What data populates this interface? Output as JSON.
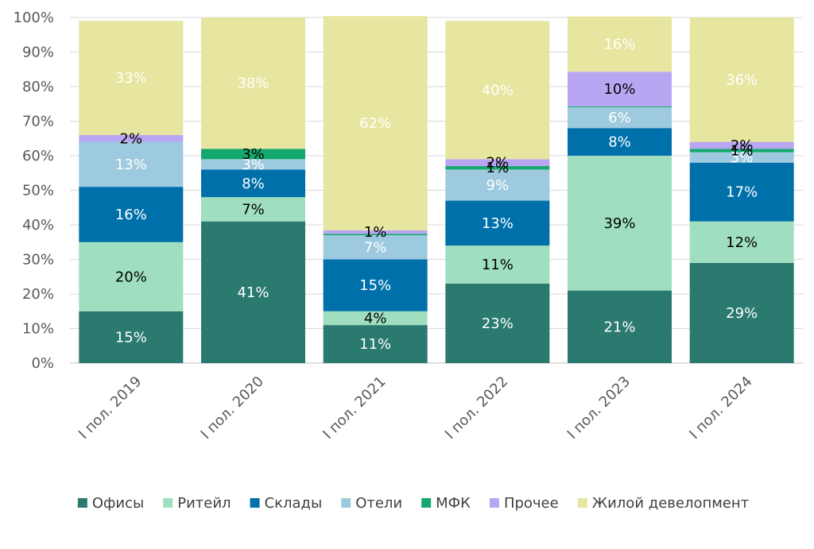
{
  "chart_data": {
    "type": "bar",
    "stacked": true,
    "title": "",
    "xlabel": "",
    "ylabel": "",
    "ylim": [
      0,
      100
    ],
    "yticks": [
      "0%",
      "10%",
      "20%",
      "30%",
      "40%",
      "50%",
      "60%",
      "70%",
      "80%",
      "90%",
      "100%"
    ],
    "grid": true,
    "legend_position": "bottom",
    "categories": [
      "I пол. 2019",
      "I пол. 2020",
      "I пол. 2021",
      "I пол. 2022",
      "I пол. 2023",
      "I пол. 2024"
    ],
    "series": [
      {
        "name": "Офисы",
        "color": "#2b7a6f",
        "label_color": "#ffffff",
        "values": [
          15,
          41,
          11,
          23,
          21,
          29
        ],
        "labels": [
          "15%",
          "41%",
          "11%",
          "23%",
          "21%",
          "29%"
        ]
      },
      {
        "name": "Ритейл",
        "color": "#9fdfc0",
        "label_color": "#000000",
        "values": [
          20,
          7,
          4,
          11,
          39,
          12
        ],
        "labels": [
          "20%",
          "7%",
          "4%",
          "11%",
          "39%",
          "12%"
        ]
      },
      {
        "name": "Склады",
        "color": "#0070ab",
        "label_color": "#ffffff",
        "values": [
          16,
          8,
          15,
          13,
          8,
          17
        ],
        "labels": [
          "16%",
          "8%",
          "15%",
          "13%",
          "8%",
          "17%"
        ]
      },
      {
        "name": "Отели",
        "color": "#9ecadf",
        "label_color": "#ffffff",
        "values": [
          13,
          3,
          7,
          9,
          6,
          3
        ],
        "labels": [
          "13%",
          "3%",
          "7%",
          "9%",
          "6%",
          "3%"
        ]
      },
      {
        "name": "МФК",
        "color": "#14a86e",
        "label_color": "#000000",
        "values": [
          0,
          3,
          0.4,
          1,
          0.3,
          1
        ],
        "labels": [
          "",
          "3%",
          "",
          "1%",
          "",
          "1%"
        ]
      },
      {
        "name": "Прочее",
        "color": "#b9a6f2",
        "label_color": "#000000",
        "values": [
          2,
          0,
          1,
          2,
          10,
          2
        ],
        "labels": [
          "2%",
          "",
          "1%",
          "2%",
          "10%",
          "2%"
        ]
      },
      {
        "name": "Жилой девелопмент",
        "color": "#e6e6a0",
        "label_color": "#ffffff",
        "values": [
          33,
          38,
          62,
          40,
          16,
          36
        ],
        "labels": [
          "33%",
          "38%",
          "62%",
          "40%",
          "16%",
          "36%"
        ]
      }
    ]
  }
}
